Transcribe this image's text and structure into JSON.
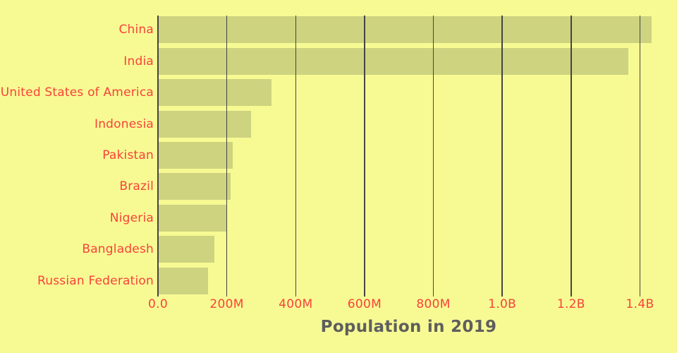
{
  "chart_data": {
    "type": "bar",
    "orientation": "horizontal",
    "title": "Population in 2019",
    "categories": [
      "China",
      "India",
      "United States of America",
      "Indonesia",
      "Pakistan",
      "Brazil",
      "Nigeria",
      "Bangladesh",
      "Russian Federation"
    ],
    "values_millions": [
      1433.8,
      1366.4,
      329.1,
      270.6,
      216.6,
      211.0,
      201.0,
      163.0,
      145.9
    ],
    "series": [
      {
        "name": "Population in 2019",
        "values": [
          1433.8,
          1366.4,
          329.1,
          270.6,
          216.6,
          211.0,
          201.0,
          163.0,
          145.9
        ]
      }
    ],
    "x_ticks": [
      {
        "value": 0,
        "label": "0.0"
      },
      {
        "value": 200,
        "label": "200M"
      },
      {
        "value": 400,
        "label": "400M"
      },
      {
        "value": 600,
        "label": "600M"
      },
      {
        "value": 800,
        "label": "800M"
      },
      {
        "value": 1000,
        "label": "1.0B"
      },
      {
        "value": 1200,
        "label": "1.2B"
      },
      {
        "value": 1400,
        "label": "1.4B"
      }
    ],
    "xlim_millions": [
      0,
      1456
    ],
    "xlabel": "",
    "ylabel": "",
    "grid": "vertical-only",
    "legend": "none",
    "colors": {
      "background": "#f7fa93",
      "bar": "#cdd37f",
      "label_red": "#f9423a",
      "gridline": "#454545",
      "title_gray": "#5e5e5e"
    }
  }
}
